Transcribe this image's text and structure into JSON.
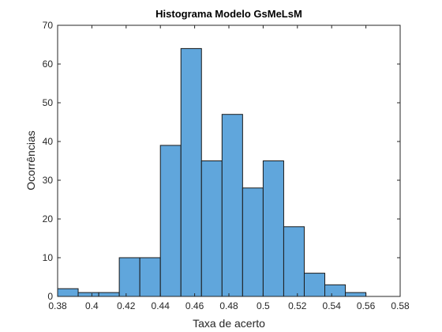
{
  "chart_data": {
    "type": "bar",
    "title": "Histograma Modelo GsMeLsM",
    "xlabel": "Taxa de acerto",
    "ylabel": "Ocorrências",
    "xlim": [
      0.38,
      0.58
    ],
    "ylim": [
      0,
      70
    ],
    "xticks": [
      "0.38",
      "0.4",
      "0.42",
      "0.44",
      "0.46",
      "0.48",
      "0.5",
      "0.52",
      "0.54",
      "0.56",
      "0.58"
    ],
    "yticks": [
      "0",
      "10",
      "20",
      "30",
      "40",
      "50",
      "60",
      "70"
    ],
    "bin_width": 0.012,
    "bins": [
      {
        "start": 0.38,
        "value": 2
      },
      {
        "start": 0.392,
        "value": 1
      },
      {
        "start": 0.404,
        "value": 1
      },
      {
        "start": 0.416,
        "value": 10
      },
      {
        "start": 0.428,
        "value": 10
      },
      {
        "start": 0.44,
        "value": 39
      },
      {
        "start": 0.452,
        "value": 64
      },
      {
        "start": 0.464,
        "value": 35
      },
      {
        "start": 0.476,
        "value": 47
      },
      {
        "start": 0.488,
        "value": 28
      },
      {
        "start": 0.5,
        "value": 35
      },
      {
        "start": 0.512,
        "value": 18
      },
      {
        "start": 0.524,
        "value": 6
      },
      {
        "start": 0.536,
        "value": 3
      },
      {
        "start": 0.548,
        "value": 1
      }
    ],
    "grid": false,
    "bar_color": "#60a6dc",
    "edge_color": "#1a1a1a"
  }
}
